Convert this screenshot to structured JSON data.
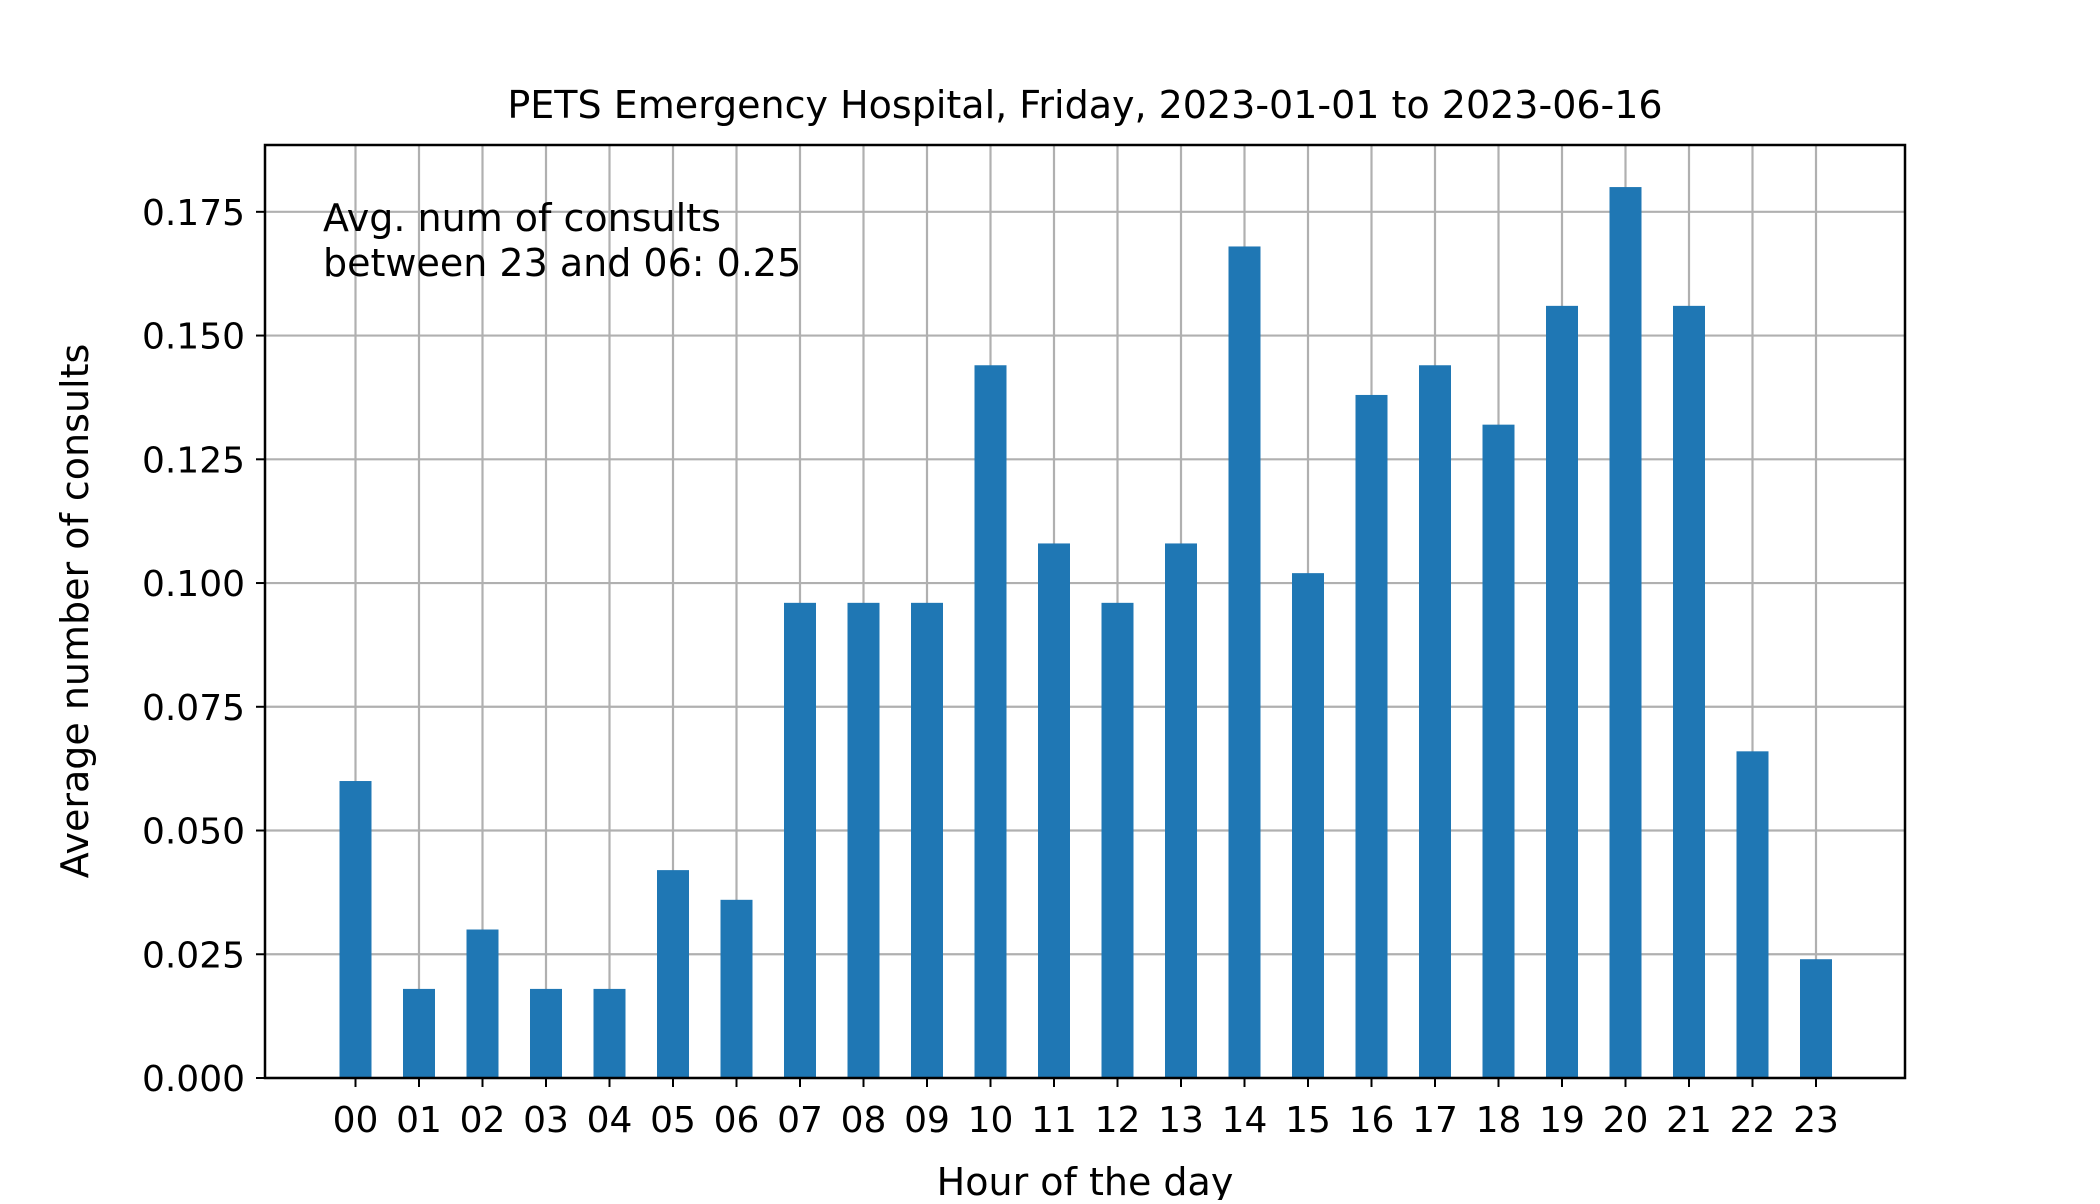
{
  "chart_data": {
    "type": "bar",
    "title": "PETS Emergency Hospital, Friday, 2023-01-01 to 2023-06-16",
    "xlabel": "Hour of the day",
    "ylabel": "Average number of consults",
    "categories": [
      "00",
      "01",
      "02",
      "03",
      "04",
      "05",
      "06",
      "07",
      "08",
      "09",
      "10",
      "11",
      "12",
      "13",
      "14",
      "15",
      "16",
      "17",
      "18",
      "19",
      "20",
      "21",
      "22",
      "23"
    ],
    "values": [
      0.06,
      0.018,
      0.03,
      0.018,
      0.018,
      0.042,
      0.036,
      0.096,
      0.096,
      0.096,
      0.144,
      0.108,
      0.096,
      0.108,
      0.168,
      0.102,
      0.138,
      0.144,
      0.132,
      0.156,
      0.18,
      0.156,
      0.066,
      0.024
    ],
    "ylim": [
      0,
      0.1885
    ],
    "yticks": [
      "0.000",
      "0.025",
      "0.050",
      "0.075",
      "0.100",
      "0.125",
      "0.150",
      "0.175"
    ],
    "grid": true,
    "bar_color": "#1f77b4",
    "grid_color": "#b0b0b0",
    "annotation": {
      "line1": "Avg. num of consults",
      "line2": "between 23 and 06: 0.25"
    }
  }
}
